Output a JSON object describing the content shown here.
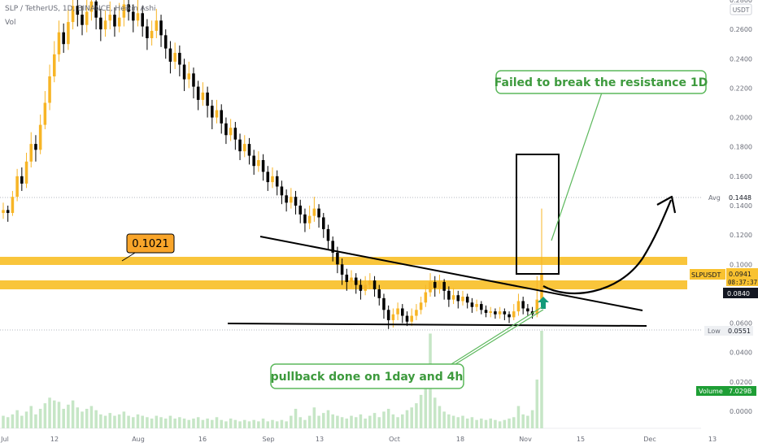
{
  "header": {
    "symbol_line": "SLP / TetherUS, 1D, BINANCE, Heikin Ashi",
    "vol_label": "Vol",
    "currency_badge": "USDT"
  },
  "price_axis": {
    "ticks": [
      "0.2800",
      "0.2600",
      "0.2400",
      "0.2200",
      "0.2000",
      "0.1800",
      "0.1600",
      "0.1400",
      "0.1200",
      "0.1000",
      "0.0800",
      "0.0600",
      "0.0400",
      "0.0200",
      "0.0000"
    ]
  },
  "time_axis": {
    "ticks": [
      "Jul",
      "12",
      "Aug",
      "16",
      "Sep",
      "13",
      "Oct",
      "18",
      "Nov",
      "15",
      "Dec",
      "13"
    ]
  },
  "badges": {
    "avg_label": "Avg",
    "avg_value": "0.1448",
    "symbol": "SLPUSDT",
    "symbol_price": "0.0941",
    "countdown": "08:37:37",
    "level_value": "0.0840",
    "low_label": "Low",
    "low_value": "0.0551",
    "volume_label": "Volume",
    "volume_value": "7.029B"
  },
  "annotations": {
    "level_callout": "0.1021",
    "resistance_note": "Failed to break the resistance 1D",
    "pullback_note": "pullback done on 1day and 4h"
  },
  "colors": {
    "candle": "#f7b526",
    "candle_down": "#000000",
    "zone": "#f9c230",
    "note_border": "#5cb85c",
    "note_text": "#3d9a3d",
    "volume_bar": "#c6e6c6",
    "volume_badge": "#1e9e35",
    "arrow_up": "#139a7a"
  },
  "chart_data": {
    "type": "candlestick",
    "x_label": "",
    "y_label": "",
    "ylim": [
      0.0,
      0.28
    ],
    "y_ticks": [
      0.28,
      0.26,
      0.24,
      0.22,
      0.2,
      0.18,
      0.16,
      0.14,
      0.12,
      0.1,
      0.08,
      0.06,
      0.04,
      0.02,
      0.0
    ],
    "x_ticks": [
      "Jul",
      "12",
      "Aug",
      "16",
      "Sep",
      "13",
      "Oct",
      "18",
      "Nov",
      "15",
      "Dec",
      "13"
    ],
    "series": [
      {
        "points": [
          {
            "o": 0.135,
            "c": 0.137,
            "h": 0.142,
            "l": 0.131
          },
          {
            "o": 0.137,
            "c": 0.135,
            "h": 0.14,
            "l": 0.129
          },
          {
            "o": 0.135,
            "c": 0.146,
            "h": 0.15,
            "l": 0.133
          },
          {
            "o": 0.146,
            "c": 0.16,
            "h": 0.165,
            "l": 0.143
          },
          {
            "o": 0.16,
            "c": 0.155,
            "h": 0.166,
            "l": 0.15
          },
          {
            "o": 0.155,
            "c": 0.17,
            "h": 0.176,
            "l": 0.152
          },
          {
            "o": 0.17,
            "c": 0.182,
            "h": 0.19,
            "l": 0.166
          },
          {
            "o": 0.182,
            "c": 0.178,
            "h": 0.188,
            "l": 0.17
          },
          {
            "o": 0.178,
            "c": 0.195,
            "h": 0.202,
            "l": 0.175
          },
          {
            "o": 0.195,
            "c": 0.21,
            "h": 0.218,
            "l": 0.192
          },
          {
            "o": 0.21,
            "c": 0.228,
            "h": 0.236,
            "l": 0.205
          },
          {
            "o": 0.228,
            "c": 0.243,
            "h": 0.252,
            "l": 0.224
          },
          {
            "o": 0.243,
            "c": 0.258,
            "h": 0.266,
            "l": 0.238
          },
          {
            "o": 0.258,
            "c": 0.25,
            "h": 0.264,
            "l": 0.244
          },
          {
            "o": 0.25,
            "c": 0.265,
            "h": 0.274,
            "l": 0.246
          },
          {
            "o": 0.265,
            "c": 0.276,
            "h": 0.282,
            "l": 0.26
          },
          {
            "o": 0.276,
            "c": 0.27,
            "h": 0.283,
            "l": 0.262
          },
          {
            "o": 0.27,
            "c": 0.263,
            "h": 0.276,
            "l": 0.256
          },
          {
            "o": 0.263,
            "c": 0.272,
            "h": 0.281,
            "l": 0.258
          },
          {
            "o": 0.272,
            "c": 0.279,
            "h": 0.284,
            "l": 0.266
          },
          {
            "o": 0.279,
            "c": 0.268,
            "h": 0.282,
            "l": 0.26
          },
          {
            "o": 0.268,
            "c": 0.26,
            "h": 0.274,
            "l": 0.252
          },
          {
            "o": 0.26,
            "c": 0.266,
            "h": 0.273,
            "l": 0.255
          },
          {
            "o": 0.266,
            "c": 0.27,
            "h": 0.279,
            "l": 0.26
          },
          {
            "o": 0.27,
            "c": 0.262,
            "h": 0.275,
            "l": 0.255
          },
          {
            "o": 0.262,
            "c": 0.268,
            "h": 0.278,
            "l": 0.258
          },
          {
            "o": 0.268,
            "c": 0.277,
            "h": 0.283,
            "l": 0.262
          },
          {
            "o": 0.277,
            "c": 0.272,
            "h": 0.283,
            "l": 0.266
          },
          {
            "o": 0.272,
            "c": 0.266,
            "h": 0.277,
            "l": 0.258
          },
          {
            "o": 0.266,
            "c": 0.271,
            "h": 0.28,
            "l": 0.262
          },
          {
            "o": 0.271,
            "c": 0.262,
            "h": 0.276,
            "l": 0.255
          },
          {
            "o": 0.262,
            "c": 0.254,
            "h": 0.267,
            "l": 0.246
          },
          {
            "o": 0.254,
            "c": 0.259,
            "h": 0.266,
            "l": 0.249
          },
          {
            "o": 0.259,
            "c": 0.266,
            "h": 0.274,
            "l": 0.254
          },
          {
            "o": 0.266,
            "c": 0.256,
            "h": 0.27,
            "l": 0.248
          },
          {
            "o": 0.256,
            "c": 0.247,
            "h": 0.26,
            "l": 0.24
          },
          {
            "o": 0.247,
            "c": 0.238,
            "h": 0.252,
            "l": 0.23
          },
          {
            "o": 0.238,
            "c": 0.244,
            "h": 0.251,
            "l": 0.233
          },
          {
            "o": 0.244,
            "c": 0.236,
            "h": 0.249,
            "l": 0.228
          },
          {
            "o": 0.236,
            "c": 0.226,
            "h": 0.24,
            "l": 0.218
          },
          {
            "o": 0.226,
            "c": 0.23,
            "h": 0.238,
            "l": 0.22
          },
          {
            "o": 0.23,
            "c": 0.221,
            "h": 0.234,
            "l": 0.213
          },
          {
            "o": 0.221,
            "c": 0.212,
            "h": 0.225,
            "l": 0.205
          },
          {
            "o": 0.212,
            "c": 0.217,
            "h": 0.224,
            "l": 0.208
          },
          {
            "o": 0.217,
            "c": 0.208,
            "h": 0.221,
            "l": 0.2
          },
          {
            "o": 0.208,
            "c": 0.2,
            "h": 0.212,
            "l": 0.192
          },
          {
            "o": 0.2,
            "c": 0.205,
            "h": 0.212,
            "l": 0.196
          },
          {
            "o": 0.205,
            "c": 0.196,
            "h": 0.209,
            "l": 0.189
          },
          {
            "o": 0.196,
            "c": 0.188,
            "h": 0.2,
            "l": 0.182
          },
          {
            "o": 0.188,
            "c": 0.193,
            "h": 0.199,
            "l": 0.184
          },
          {
            "o": 0.193,
            "c": 0.185,
            "h": 0.197,
            "l": 0.178
          },
          {
            "o": 0.185,
            "c": 0.177,
            "h": 0.189,
            "l": 0.171
          },
          {
            "o": 0.177,
            "c": 0.182,
            "h": 0.188,
            "l": 0.173
          },
          {
            "o": 0.182,
            "c": 0.174,
            "h": 0.186,
            "l": 0.168
          },
          {
            "o": 0.174,
            "c": 0.167,
            "h": 0.178,
            "l": 0.161
          },
          {
            "o": 0.167,
            "c": 0.171,
            "h": 0.177,
            "l": 0.163
          },
          {
            "o": 0.171,
            "c": 0.163,
            "h": 0.175,
            "l": 0.157
          },
          {
            "o": 0.163,
            "c": 0.156,
            "h": 0.167,
            "l": 0.15
          },
          {
            "o": 0.156,
            "c": 0.16,
            "h": 0.166,
            "l": 0.152
          },
          {
            "o": 0.16,
            "c": 0.153,
            "h": 0.164,
            "l": 0.147
          },
          {
            "o": 0.153,
            "c": 0.147,
            "h": 0.157,
            "l": 0.141
          },
          {
            "o": 0.147,
            "c": 0.142,
            "h": 0.151,
            "l": 0.136
          },
          {
            "o": 0.142,
            "c": 0.146,
            "h": 0.152,
            "l": 0.138
          },
          {
            "o": 0.146,
            "c": 0.14,
            "h": 0.15,
            "l": 0.134
          },
          {
            "o": 0.14,
            "c": 0.134,
            "h": 0.144,
            "l": 0.128
          },
          {
            "o": 0.134,
            "c": 0.128,
            "h": 0.138,
            "l": 0.122
          },
          {
            "o": 0.128,
            "c": 0.133,
            "h": 0.14,
            "l": 0.124
          },
          {
            "o": 0.133,
            "c": 0.138,
            "h": 0.146,
            "l": 0.129
          },
          {
            "o": 0.138,
            "c": 0.132,
            "h": 0.141,
            "l": 0.125
          },
          {
            "o": 0.132,
            "c": 0.124,
            "h": 0.135,
            "l": 0.118
          },
          {
            "o": 0.124,
            "c": 0.116,
            "h": 0.127,
            "l": 0.11
          },
          {
            "o": 0.116,
            "c": 0.108,
            "h": 0.119,
            "l": 0.102
          },
          {
            "o": 0.108,
            "c": 0.1,
            "h": 0.112,
            "l": 0.094
          },
          {
            "o": 0.1,
            "c": 0.093,
            "h": 0.104,
            "l": 0.086
          },
          {
            "o": 0.093,
            "c": 0.088,
            "h": 0.097,
            "l": 0.082
          },
          {
            "o": 0.088,
            "c": 0.091,
            "h": 0.096,
            "l": 0.084
          },
          {
            "o": 0.091,
            "c": 0.086,
            "h": 0.094,
            "l": 0.08
          },
          {
            "o": 0.086,
            "c": 0.082,
            "h": 0.09,
            "l": 0.076
          },
          {
            "o": 0.082,
            "c": 0.086,
            "h": 0.092,
            "l": 0.079
          },
          {
            "o": 0.086,
            "c": 0.089,
            "h": 0.094,
            "l": 0.083
          },
          {
            "o": 0.089,
            "c": 0.083,
            "h": 0.092,
            "l": 0.078
          },
          {
            "o": 0.083,
            "c": 0.077,
            "h": 0.086,
            "l": 0.072
          },
          {
            "o": 0.077,
            "c": 0.069,
            "h": 0.08,
            "l": 0.063
          },
          {
            "o": 0.069,
            "c": 0.062,
            "h": 0.072,
            "l": 0.056
          },
          {
            "o": 0.062,
            "c": 0.066,
            "h": 0.07,
            "l": 0.057
          },
          {
            "o": 0.066,
            "c": 0.07,
            "h": 0.074,
            "l": 0.062
          },
          {
            "o": 0.07,
            "c": 0.065,
            "h": 0.073,
            "l": 0.06
          },
          {
            "o": 0.065,
            "c": 0.061,
            "h": 0.068,
            "l": 0.058
          },
          {
            "o": 0.061,
            "c": 0.065,
            "h": 0.07,
            "l": 0.058
          },
          {
            "o": 0.065,
            "c": 0.069,
            "h": 0.073,
            "l": 0.062
          },
          {
            "o": 0.069,
            "c": 0.074,
            "h": 0.078,
            "l": 0.066
          },
          {
            "o": 0.074,
            "c": 0.081,
            "h": 0.086,
            "l": 0.071
          },
          {
            "o": 0.081,
            "c": 0.088,
            "h": 0.094,
            "l": 0.078
          },
          {
            "o": 0.088,
            "c": 0.084,
            "h": 0.092,
            "l": 0.078
          },
          {
            "o": 0.084,
            "c": 0.088,
            "h": 0.093,
            "l": 0.08
          },
          {
            "o": 0.088,
            "c": 0.082,
            "h": 0.09,
            "l": 0.076
          },
          {
            "o": 0.082,
            "c": 0.076,
            "h": 0.085,
            "l": 0.071
          },
          {
            "o": 0.076,
            "c": 0.079,
            "h": 0.084,
            "l": 0.073
          },
          {
            "o": 0.079,
            "c": 0.075,
            "h": 0.082,
            "l": 0.07
          },
          {
            "o": 0.075,
            "c": 0.078,
            "h": 0.082,
            "l": 0.072
          },
          {
            "o": 0.078,
            "c": 0.074,
            "h": 0.08,
            "l": 0.07
          },
          {
            "o": 0.074,
            "c": 0.071,
            "h": 0.077,
            "l": 0.067
          },
          {
            "o": 0.071,
            "c": 0.073,
            "h": 0.076,
            "l": 0.068
          },
          {
            "o": 0.073,
            "c": 0.069,
            "h": 0.075,
            "l": 0.066
          },
          {
            "o": 0.069,
            "c": 0.067,
            "h": 0.072,
            "l": 0.064
          },
          {
            "o": 0.067,
            "c": 0.068,
            "h": 0.071,
            "l": 0.064
          },
          {
            "o": 0.068,
            "c": 0.066,
            "h": 0.07,
            "l": 0.063
          },
          {
            "o": 0.066,
            "c": 0.068,
            "h": 0.071,
            "l": 0.063
          },
          {
            "o": 0.068,
            "c": 0.066,
            "h": 0.07,
            "l": 0.062
          },
          {
            "o": 0.066,
            "c": 0.064,
            "h": 0.068,
            "l": 0.06
          },
          {
            "o": 0.064,
            "c": 0.068,
            "h": 0.073,
            "l": 0.062
          },
          {
            "o": 0.068,
            "c": 0.075,
            "h": 0.08,
            "l": 0.065
          },
          {
            "o": 0.075,
            "c": 0.07,
            "h": 0.078,
            "l": 0.066
          },
          {
            "o": 0.07,
            "c": 0.068,
            "h": 0.073,
            "l": 0.065
          },
          {
            "o": 0.068,
            "c": 0.066,
            "h": 0.071,
            "l": 0.063
          },
          {
            "o": 0.066,
            "c": 0.076,
            "h": 0.092,
            "l": 0.064
          },
          {
            "o": 0.076,
            "c": 0.094,
            "h": 0.138,
            "l": 0.072
          }
        ]
      },
      {
        "name": "Volume",
        "values": [
          0.9,
          0.8,
          1.0,
          1.3,
          0.9,
          1.2,
          1.6,
          1.0,
          1.4,
          1.8,
          2.2,
          2.0,
          1.9,
          1.4,
          1.7,
          2.0,
          1.5,
          1.2,
          1.4,
          1.6,
          1.3,
          1.0,
          0.9,
          1.1,
          0.9,
          1.0,
          1.2,
          0.9,
          0.8,
          1.0,
          0.9,
          0.8,
          0.7,
          0.9,
          0.8,
          0.7,
          0.9,
          0.7,
          0.8,
          0.7,
          0.6,
          0.7,
          0.8,
          0.6,
          0.7,
          0.6,
          0.8,
          0.6,
          0.5,
          0.7,
          0.6,
          0.5,
          0.6,
          0.5,
          0.6,
          0.5,
          0.7,
          0.5,
          0.6,
          0.5,
          0.6,
          0.5,
          0.9,
          1.4,
          0.8,
          0.6,
          0.9,
          1.5,
          0.9,
          1.1,
          1.3,
          1.0,
          0.9,
          0.8,
          0.7,
          0.9,
          0.8,
          1.0,
          0.7,
          0.9,
          1.1,
          0.8,
          1.2,
          1.4,
          1.0,
          0.8,
          1.0,
          1.3,
          1.5,
          1.8,
          2.4,
          3.4,
          6.8,
          2.2,
          1.6,
          1.2,
          1.0,
          0.9,
          0.8,
          0.9,
          0.7,
          0.8,
          0.6,
          0.7,
          0.6,
          0.7,
          0.6,
          0.5,
          0.6,
          0.7,
          0.8,
          1.6,
          1.0,
          0.9,
          1.3,
          3.5,
          7.0
        ]
      }
    ]
  }
}
